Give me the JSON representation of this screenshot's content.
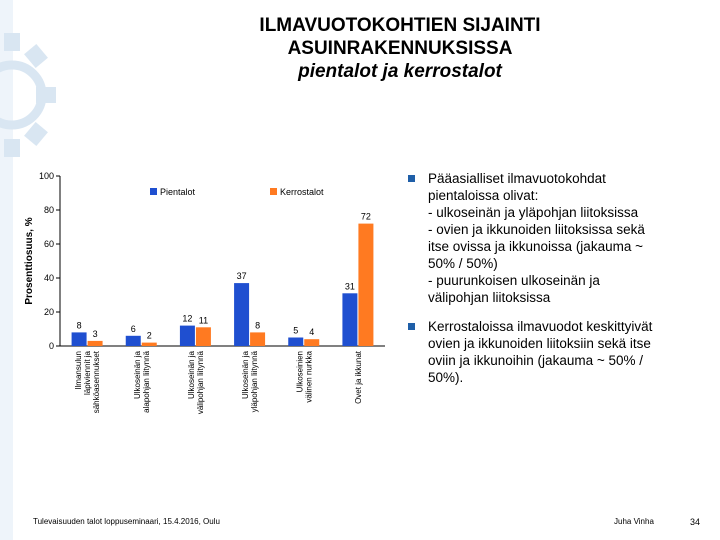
{
  "slide": {
    "title_line1": "ILMAVUOTOKOHTIEN SIJAINTI",
    "title_line2": "ASUINRAKENNUKSISSA",
    "title_line3": "pientalot ja kerrostalot"
  },
  "chart_data": {
    "type": "bar",
    "ylabel": "Prosenttiosuus, %",
    "ylim": [
      0,
      100
    ],
    "yticks": [
      0,
      20,
      40,
      60,
      80,
      100
    ],
    "legend_position": "top",
    "grid": false,
    "categories": [
      [
        "Ilmansulun",
        "läpiviennit ja",
        "sähköasennukset"
      ],
      [
        "Ulkoseinän ja",
        "alapohjan liitynnä"
      ],
      [
        "Ulkoseinän ja",
        "välipohjan liitynnä"
      ],
      [
        "Ulkoseinän ja",
        "yläpohjan liitynnä"
      ],
      [
        "Ulkoseinien",
        "välinen nurkka"
      ],
      [
        "Ovet ja ikkunat"
      ]
    ],
    "series": [
      {
        "name": "Pientalot",
        "color": "#1f4fd0",
        "values": [
          8,
          6,
          12,
          37,
          5,
          31
        ]
      },
      {
        "name": "Kerrostalot",
        "color": "#ff7a21",
        "values": [
          3,
          2,
          11,
          8,
          4,
          72
        ]
      }
    ]
  },
  "bullets": [
    {
      "lines": [
        "Pääasialliset ilmavuotokohdat",
        "pientaloissa olivat:",
        "- ulkoseinän ja yläpohjan liitoksissa",
        "- ovien ja ikkunoiden liitoksissa sekä",
        "itse ovissa ja ikkunoissa (jakauma ~",
        "50% / 50%)",
        "- puurunkoisen ulkoseinän ja",
        "välipohjan liitoksissa"
      ]
    },
    {
      "lines": [
        "Kerrostaloissa ilmavuodot keskittyivät",
        "ovien ja ikkunoiden liitoksiin sekä itse",
        "oviin ja ikkunoihin (jakauma ~ 50% /",
        "50%)."
      ]
    }
  ],
  "footer": {
    "event": "Tulevaisuuden talot loppuseminaari, 15.4.2016, Oulu",
    "author": "Juha Vinha",
    "page": "34"
  }
}
